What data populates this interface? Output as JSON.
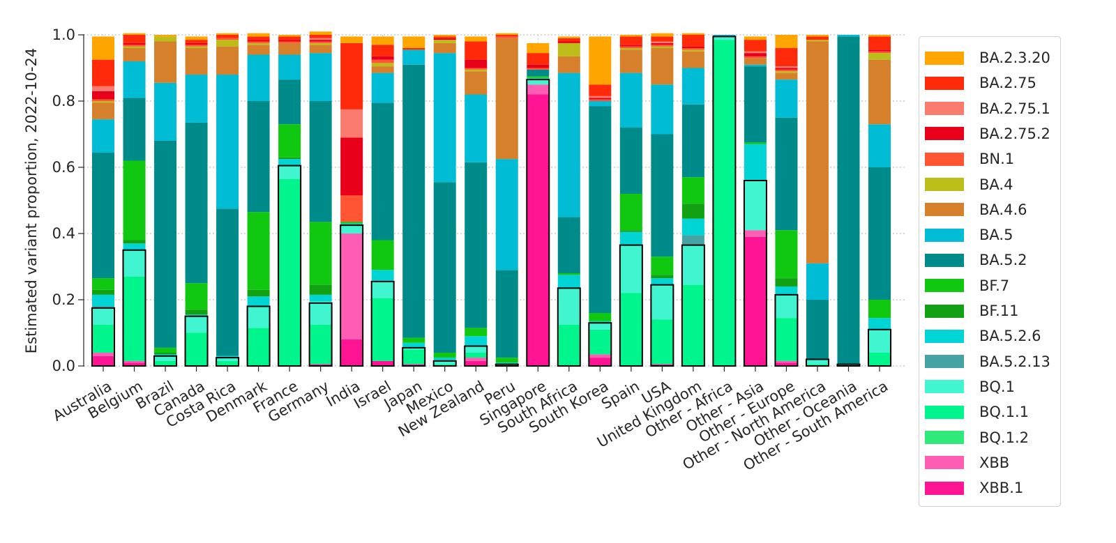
{
  "chart_data": {
    "type": "bar",
    "stacked": true,
    "ylabel": "Estimated variant proportion, 2022-10-24",
    "ylim": [
      0,
      1.0
    ],
    "yticks": [
      "0.0",
      "0.2",
      "0.4",
      "0.6",
      "0.8",
      "1.0"
    ],
    "grid": true,
    "legend_position": "right",
    "categories": [
      "Australia",
      "Belgium",
      "Brazil",
      "Canada",
      "Costa Rica",
      "Denmark",
      "France",
      "Germany",
      "India",
      "Israel",
      "Japan",
      "Mexico",
      "New Zealand",
      "Peru",
      "Singapore",
      "South Africa",
      "South Korea",
      "Spain",
      "USA",
      "United Kingdom",
      "Other - Africa",
      "Other - Asia",
      "Other - Europe",
      "Other - North America",
      "Other - Oceania",
      "Other - South America"
    ],
    "series": [
      {
        "name": "XBB.1",
        "color": "#ff1493",
        "values": [
          0.03,
          0.01,
          0.0,
          0.0,
          0.0,
          0.0,
          0.0,
          0.005,
          0.08,
          0.015,
          0.005,
          0.0,
          0.015,
          0.0,
          0.82,
          0.0,
          0.025,
          0.0,
          0.005,
          0.0,
          0.0,
          0.39,
          0.01,
          0.0,
          0.0,
          0.0
        ]
      },
      {
        "name": "XBB",
        "color": "#ff5cb4",
        "values": [
          0.01,
          0.005,
          0.0,
          0.0,
          0.0,
          0.0,
          0.0,
          0.0,
          0.32,
          0.0,
          0.0,
          0.0,
          0.01,
          0.0,
          0.03,
          0.0,
          0.01,
          0.0,
          0.0,
          0.0,
          0.0,
          0.02,
          0.005,
          0.0,
          0.0,
          0.0
        ]
      },
      {
        "name": "BQ.1.2",
        "color": "#2fea7a",
        "values": [
          0.0,
          0.0,
          0.0,
          0.0,
          0.0,
          0.0,
          0.0,
          0.0,
          0.0,
          0.0,
          0.0,
          0.0,
          0.0,
          0.0,
          0.0,
          0.0,
          0.0,
          0.0,
          0.0,
          0.0,
          0.0,
          0.0,
          0.0,
          0.0,
          0.0,
          0.0
        ]
      },
      {
        "name": "BQ.1.1",
        "color": "#00f58c",
        "values": [
          0.085,
          0.255,
          0.015,
          0.1,
          0.015,
          0.115,
          0.565,
          0.12,
          0.0,
          0.19,
          0.045,
          0.005,
          0.015,
          0.0,
          0.0,
          0.125,
          0.075,
          0.22,
          0.135,
          0.245,
          0.985,
          0.0,
          0.13,
          0.005,
          0.0,
          0.04
        ]
      },
      {
        "name": "BQ.1",
        "color": "#40f5d0",
        "values": [
          0.05,
          0.08,
          0.015,
          0.05,
          0.01,
          0.065,
          0.04,
          0.07,
          0.025,
          0.05,
          0.005,
          0.01,
          0.02,
          0.005,
          0.015,
          0.11,
          0.02,
          0.145,
          0.105,
          0.12,
          0.01,
          0.15,
          0.07,
          0.015,
          0.005,
          0.07
        ]
      },
      {
        "name": "BA.5.2.13",
        "color": "#45a3a3",
        "values": [
          0.005,
          0.0,
          0.0,
          0.0,
          0.0,
          0.0,
          0.0,
          0.0,
          0.0,
          0.0,
          0.0,
          0.0,
          0.0,
          0.0,
          0.0,
          0.0,
          0.0,
          0.0,
          0.0,
          0.03,
          0.0,
          0.0,
          0.0,
          0.0,
          0.0,
          0.0
        ]
      },
      {
        "name": "BA.5.2.6",
        "color": "#00d4d4",
        "values": [
          0.035,
          0.02,
          0.005,
          0.005,
          0.005,
          0.03,
          0.02,
          0.02,
          0.005,
          0.035,
          0.015,
          0.01,
          0.03,
          0.005,
          0.005,
          0.04,
          0.005,
          0.04,
          0.02,
          0.05,
          0.0,
          0.11,
          0.025,
          0.0,
          0.0,
          0.035
        ]
      },
      {
        "name": "BF.11",
        "color": "#12a112",
        "values": [
          0.015,
          0.01,
          0.005,
          0.015,
          0.0,
          0.02,
          0.005,
          0.03,
          0.0,
          0.0,
          0.0,
          0.0,
          0.0,
          0.0,
          0.0,
          0.0,
          0.0,
          0.005,
          0.01,
          0.045,
          0.0,
          0.0,
          0.025,
          0.0,
          0.0,
          0.0
        ]
      },
      {
        "name": "BF.7",
        "color": "#11c811",
        "values": [
          0.035,
          0.24,
          0.015,
          0.08,
          0.0,
          0.235,
          0.1,
          0.19,
          0.005,
          0.09,
          0.015,
          0.015,
          0.025,
          0.015,
          0.005,
          0.005,
          0.025,
          0.11,
          0.055,
          0.08,
          0.0,
          0.005,
          0.145,
          0.0,
          0.0,
          0.055
        ]
      },
      {
        "name": "BA.5.2",
        "color": "#008b8b",
        "values": [
          0.38,
          0.19,
          0.625,
          0.485,
          0.445,
          0.335,
          0.135,
          0.365,
          0.0,
          0.415,
          0.825,
          0.515,
          0.5,
          0.265,
          0.02,
          0.17,
          0.625,
          0.2,
          0.37,
          0.22,
          0.0,
          0.23,
          0.34,
          0.18,
          0.99,
          0.4
        ]
      },
      {
        "name": "BA.5",
        "color": "#00bcd4",
        "values": [
          0.1,
          0.11,
          0.175,
          0.145,
          0.405,
          0.14,
          0.075,
          0.145,
          0.0,
          0.09,
          0.045,
          0.39,
          0.205,
          0.335,
          0.0,
          0.435,
          0.015,
          0.165,
          0.15,
          0.11,
          0.005,
          0.005,
          0.115,
          0.11,
          0.005,
          0.13
        ]
      },
      {
        "name": "BA.4.6",
        "color": "#d6802c",
        "values": [
          0.05,
          0.04,
          0.125,
          0.08,
          0.085,
          0.03,
          0.035,
          0.025,
          0.0,
          0.02,
          0.0,
          0.03,
          0.07,
          0.365,
          0.0,
          0.05,
          0.0,
          0.07,
          0.11,
          0.05,
          0.0,
          0.02,
          0.02,
          0.67,
          0.0,
          0.195
        ]
      },
      {
        "name": "BA.4",
        "color": "#bdbd1a",
        "values": [
          0.005,
          0.005,
          0.015,
          0.005,
          0.02,
          0.005,
          0.0,
          0.005,
          0.0,
          0.01,
          0.0,
          0.01,
          0.005,
          0.0,
          0.0,
          0.04,
          0.0,
          0.005,
          0.005,
          0.005,
          0.0,
          0.0,
          0.005,
          0.005,
          0.0,
          0.02
        ]
      },
      {
        "name": "BN.1",
        "color": "#ff5533",
        "values": [
          0.005,
          0.005,
          0.0,
          0.005,
          0.005,
          0.005,
          0.005,
          0.005,
          0.08,
          0.01,
          0.0,
          0.0,
          0.005,
          0.005,
          0.005,
          0.0,
          0.005,
          0.005,
          0.005,
          0.005,
          0.0,
          0.005,
          0.005,
          0.0,
          0.0,
          0.005
        ]
      },
      {
        "name": "BA.2.75.2",
        "color": "#e8001a",
        "values": [
          0.025,
          0.005,
          0.0,
          0.005,
          0.0,
          0.005,
          0.005,
          0.005,
          0.175,
          0.01,
          0.0,
          0.005,
          0.025,
          0.0,
          0.01,
          0.005,
          0.005,
          0.005,
          0.005,
          0.005,
          0.0,
          0.01,
          0.005,
          0.0,
          0.0,
          0.005
        ]
      },
      {
        "name": "BA.2.75.1",
        "color": "#fa7a6e",
        "values": [
          0.015,
          0.0,
          0.0,
          0.0,
          0.0,
          0.0,
          0.0,
          0.005,
          0.085,
          0.0,
          0.0,
          0.0,
          0.0,
          0.0,
          0.0,
          0.0,
          0.005,
          0.0,
          0.005,
          0.0,
          0.0,
          0.005,
          0.005,
          0.0,
          0.0,
          0.0
        ]
      },
      {
        "name": "BA.2.75",
        "color": "#ff2a0a",
        "values": [
          0.08,
          0.025,
          0.0,
          0.01,
          0.01,
          0.01,
          0.01,
          0.01,
          0.2,
          0.035,
          0.005,
          0.005,
          0.055,
          0.005,
          0.035,
          0.01,
          0.035,
          0.025,
          0.015,
          0.035,
          0.0,
          0.035,
          0.055,
          0.01,
          0.0,
          0.04
        ]
      },
      {
        "name": "BA.2.3.20",
        "color": "#ffa500",
        "values": [
          0.07,
          0.005,
          0.005,
          0.01,
          0.005,
          0.01,
          0.005,
          0.01,
          0.02,
          0.025,
          0.035,
          0.005,
          0.015,
          0.005,
          0.03,
          0.005,
          0.145,
          0.005,
          0.01,
          0.005,
          0.0,
          0.01,
          0.04,
          0.005,
          0.0,
          0.005
        ]
      }
    ],
    "highlight_outline": [
      0.175,
      0.35,
      0.03,
      0.15,
      0.025,
      0.18,
      0.605,
      0.19,
      0.425,
      0.255,
      0.055,
      0.015,
      0.06,
      0.005,
      0.865,
      0.235,
      0.13,
      0.365,
      0.245,
      0.365,
      0.995,
      0.56,
      0.215,
      0.02,
      0.005,
      0.11
    ],
    "legend_order": [
      "BA.2.3.20",
      "BA.2.75",
      "BA.2.75.1",
      "BA.2.75.2",
      "BN.1",
      "BA.4",
      "BA.4.6",
      "BA.5",
      "BA.5.2",
      "BF.7",
      "BF.11",
      "BA.5.2.6",
      "BA.5.2.13",
      "BQ.1",
      "BQ.1.1",
      "BQ.1.2",
      "XBB",
      "XBB.1"
    ]
  }
}
